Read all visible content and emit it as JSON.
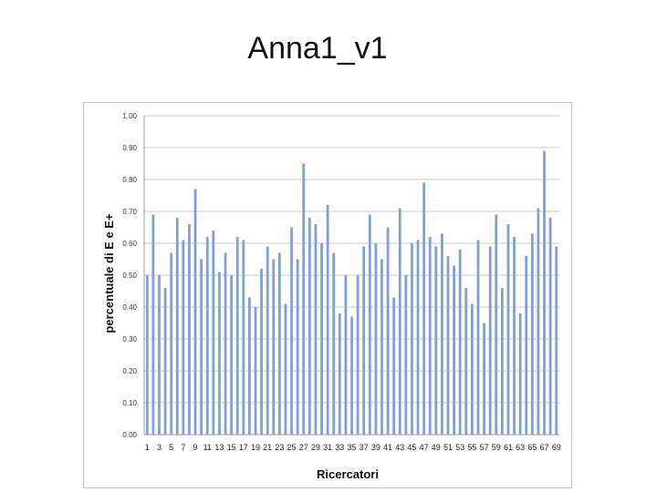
{
  "slide": {
    "title": "Anna1_v1"
  },
  "chart_data": {
    "type": "bar",
    "title": "",
    "xlabel": "Ricercatori",
    "ylabel": "percentuale di E e  E+",
    "ylim": [
      0,
      1
    ],
    "yticks": [
      "0.00",
      "0.10",
      "0.20",
      "0.30",
      "0.40",
      "0.50",
      "0.60",
      "0.70",
      "0.80",
      "0.90",
      "1.00"
    ],
    "grid": true,
    "legend": "none",
    "bar_color": "#7f9fd6",
    "categories": [
      "1",
      "2",
      "3",
      "4",
      "5",
      "6",
      "7",
      "8",
      "9",
      "10",
      "11",
      "12",
      "13",
      "14",
      "15",
      "16",
      "17",
      "18",
      "19",
      "20",
      "21",
      "22",
      "23",
      "24",
      "25",
      "26",
      "27",
      "28",
      "29",
      "30",
      "31",
      "32",
      "33",
      "34",
      "35",
      "36",
      "37",
      "38",
      "39",
      "40",
      "41",
      "42",
      "43",
      "44",
      "45",
      "46",
      "47",
      "48",
      "49",
      "50",
      "51",
      "52",
      "53",
      "54",
      "55",
      "56",
      "57",
      "58",
      "59",
      "60",
      "61",
      "62",
      "63",
      "64",
      "65",
      "66",
      "67",
      "68",
      "69"
    ],
    "xtick_labels": [
      "1",
      "3",
      "5",
      "7",
      "9",
      "11",
      "13",
      "15",
      "17",
      "19",
      "21",
      "23",
      "25",
      "27",
      "29",
      "31",
      "33",
      "35",
      "37",
      "39",
      "41",
      "43",
      "45",
      "47",
      "49",
      "51",
      "53",
      "55",
      "57",
      "59",
      "61",
      "63",
      "65",
      "67",
      "69"
    ],
    "values": [
      0.5,
      0.69,
      0.5,
      0.46,
      0.57,
      0.68,
      0.61,
      0.66,
      0.77,
      0.55,
      0.62,
      0.64,
      0.51,
      0.57,
      0.5,
      0.62,
      0.61,
      0.43,
      0.4,
      0.52,
      0.59,
      0.55,
      0.57,
      0.41,
      0.65,
      0.55,
      0.85,
      0.68,
      0.66,
      0.6,
      0.72,
      0.57,
      0.38,
      0.5,
      0.37,
      0.5,
      0.59,
      0.69,
      0.6,
      0.55,
      0.65,
      0.43,
      0.71,
      0.5,
      0.6,
      0.61,
      0.79,
      0.62,
      0.59,
      0.63,
      0.56,
      0.53,
      0.58,
      0.46,
      0.41,
      0.61,
      0.35,
      0.59,
      0.69,
      0.46,
      0.66,
      0.62,
      0.38,
      0.56,
      0.63,
      0.71,
      0.89,
      0.68,
      0.59
    ]
  }
}
